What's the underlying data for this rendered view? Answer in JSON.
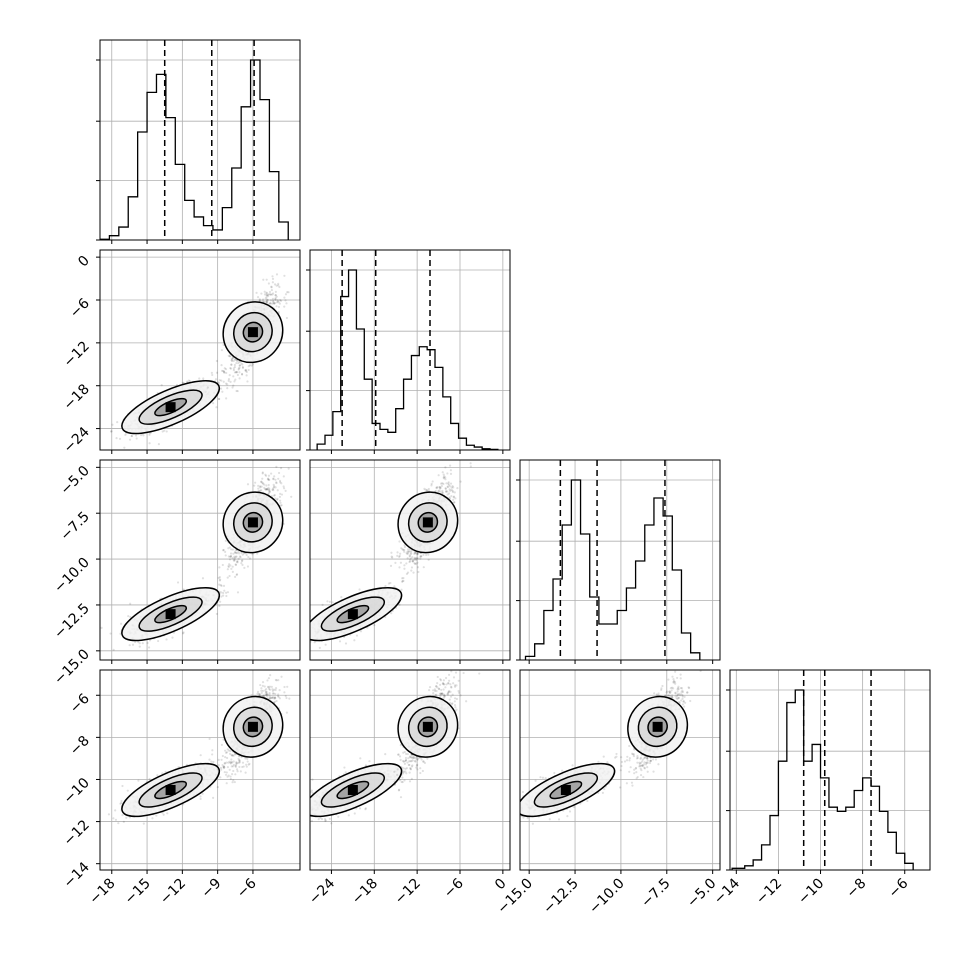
{
  "chart_data": {
    "type": "corner",
    "grid": true,
    "parameters": [
      {
        "range": [
          -19,
          -2
        ],
        "ticks": [
          -18,
          -15,
          -12,
          -9,
          -6
        ],
        "tick_labels": [
          "−18",
          "−15",
          "−12",
          "−9",
          "−6"
        ],
        "quantiles": [
          -13.5,
          -9.5,
          -5.9
        ],
        "histogram": {
          "bin_edges": [
            -19,
            -18.2,
            -17.4,
            -16.6,
            -15.8,
            -15,
            -14.2,
            -13.4,
            -12.6,
            -11.8,
            -11,
            -10.2,
            -9.4,
            -8.6,
            -7.8,
            -7,
            -6.2,
            -5.4,
            -4.6,
            -3.8,
            -3
          ],
          "counts": [
            1,
            6,
            18,
            60,
            150,
            205,
            230,
            170,
            105,
            55,
            32,
            20,
            14,
            45,
            100,
            185,
            250,
            195,
            95,
            25
          ]
        },
        "mode_centers": [
          -13,
          -6
        ]
      },
      {
        "range": [
          -27,
          1
        ],
        "ticks": [
          0,
          -6,
          -12,
          -18,
          -24
        ],
        "tick_labels": [
          "0",
          "−6",
          "−12",
          "−18",
          "−24"
        ],
        "x_tick_labels": [
          "−24",
          "−18",
          "−12",
          "−6",
          "0"
        ],
        "quantiles": [
          -22.5,
          -17.8,
          -10.2
        ],
        "histogram": {
          "bin_edges": [
            -26,
            -24.9,
            -23.8,
            -22.7,
            -21.6,
            -20.5,
            -19.4,
            -18.3,
            -17.2,
            -16.1,
            -15,
            -13.9,
            -12.8,
            -11.7,
            -10.6,
            -9.5,
            -8.4,
            -7.3,
            -6.2,
            -5.1,
            -4,
            -2.9,
            -1.8,
            -0.7
          ],
          "counts": [
            10,
            25,
            65,
            260,
            305,
            205,
            120,
            45,
            35,
            30,
            70,
            120,
            160,
            175,
            170,
            140,
            90,
            45,
            20,
            8,
            5,
            2,
            1
          ]
        },
        "mode_centers": [
          -21,
          -10.5
        ]
      },
      {
        "range": [
          -15.5,
          -4.6
        ],
        "ticks": [
          -5.0,
          -7.5,
          -10.0,
          -12.5,
          -15.0
        ],
        "tick_labels": [
          "−5.0",
          "−7.5",
          "−10.0",
          "−12.5",
          "−15.0"
        ],
        "quantiles": [
          -13.3,
          -11.3,
          -7.6
        ],
        "histogram": {
          "bin_edges": [
            -15.2,
            -14.7,
            -14.2,
            -13.7,
            -13.2,
            -12.7,
            -12.2,
            -11.7,
            -11.2,
            -10.7,
            -10.2,
            -9.7,
            -9.2,
            -8.7,
            -8.2,
            -7.7,
            -7.2,
            -6.7,
            -6.2,
            -5.7
          ],
          "counts": [
            4,
            18,
            55,
            90,
            150,
            200,
            140,
            70,
            40,
            40,
            55,
            80,
            110,
            150,
            180,
            160,
            100,
            30,
            8
          ]
        },
        "mode_centers": [
          -13,
          -8
        ]
      },
      {
        "range": [
          -14.3,
          -4.8
        ],
        "ticks": [
          -6,
          -8,
          -10,
          -12,
          -14
        ],
        "tick_labels": [
          "−6",
          "−8",
          "−10",
          "−12",
          "−14"
        ],
        "quantiles": [
          -10.8,
          -9.8,
          -7.6
        ],
        "histogram": {
          "bin_edges": [
            -14.2,
            -13.6,
            -13.2,
            -12.8,
            -12.4,
            -12,
            -11.6,
            -11.2,
            -10.8,
            -10.4,
            -10,
            -9.6,
            -9.2,
            -8.8,
            -8.4,
            -8,
            -7.6,
            -7.2,
            -6.8,
            -6.4,
            -6,
            -5.6
          ],
          "counts": [
            2,
            5,
            12,
            30,
            65,
            130,
            200,
            215,
            130,
            150,
            110,
            75,
            70,
            75,
            95,
            110,
            100,
            70,
            45,
            20,
            8
          ]
        },
        "mode_centers": [
          -10.5,
          -7.5
        ]
      }
    ],
    "diagonal_ytick_fractions": [
      0,
      0.33,
      0.66,
      1.0
    ]
  }
}
